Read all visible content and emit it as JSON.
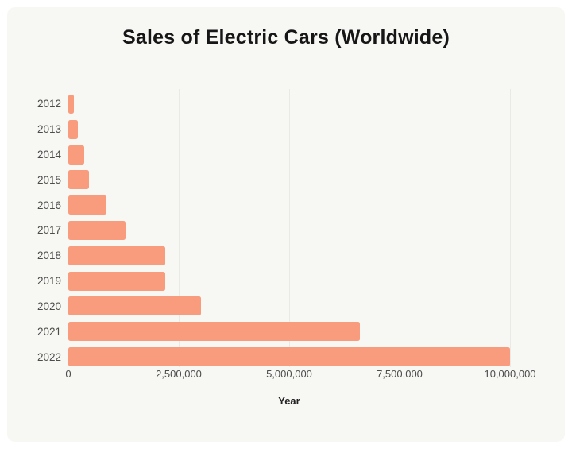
{
  "title": "Sales of Electric Cars (Worldwide)",
  "chart_data": {
    "type": "bar",
    "orientation": "horizontal",
    "title": "Sales of Electric Cars (Worldwide)",
    "categories": [
      "2012",
      "2013",
      "2014",
      "2015",
      "2016",
      "2017",
      "2018",
      "2019",
      "2020",
      "2021",
      "2022"
    ],
    "values": [
      120000,
      220000,
      360000,
      470000,
      870000,
      1300000,
      2200000,
      2200000,
      3000000,
      6600000,
      10000000
    ],
    "xlabel": "Year",
    "ylabel": "",
    "xlim": [
      0,
      10000000
    ],
    "x_ticks": [
      0,
      2500000,
      5000000,
      7500000,
      10000000
    ],
    "x_tick_labels": [
      "0",
      "2,500,000",
      "5,000,000",
      "7,500,000",
      "10,000,000"
    ],
    "grid": "vertical-only",
    "legend": false,
    "bar_color": "#f99c7e",
    "plot_background": "#f7f7f4",
    "outer_background": "#ffffff",
    "gridline_color": "#e9e9e5",
    "axis_text_color": "#4d4d4d",
    "title_color": "#161616"
  }
}
